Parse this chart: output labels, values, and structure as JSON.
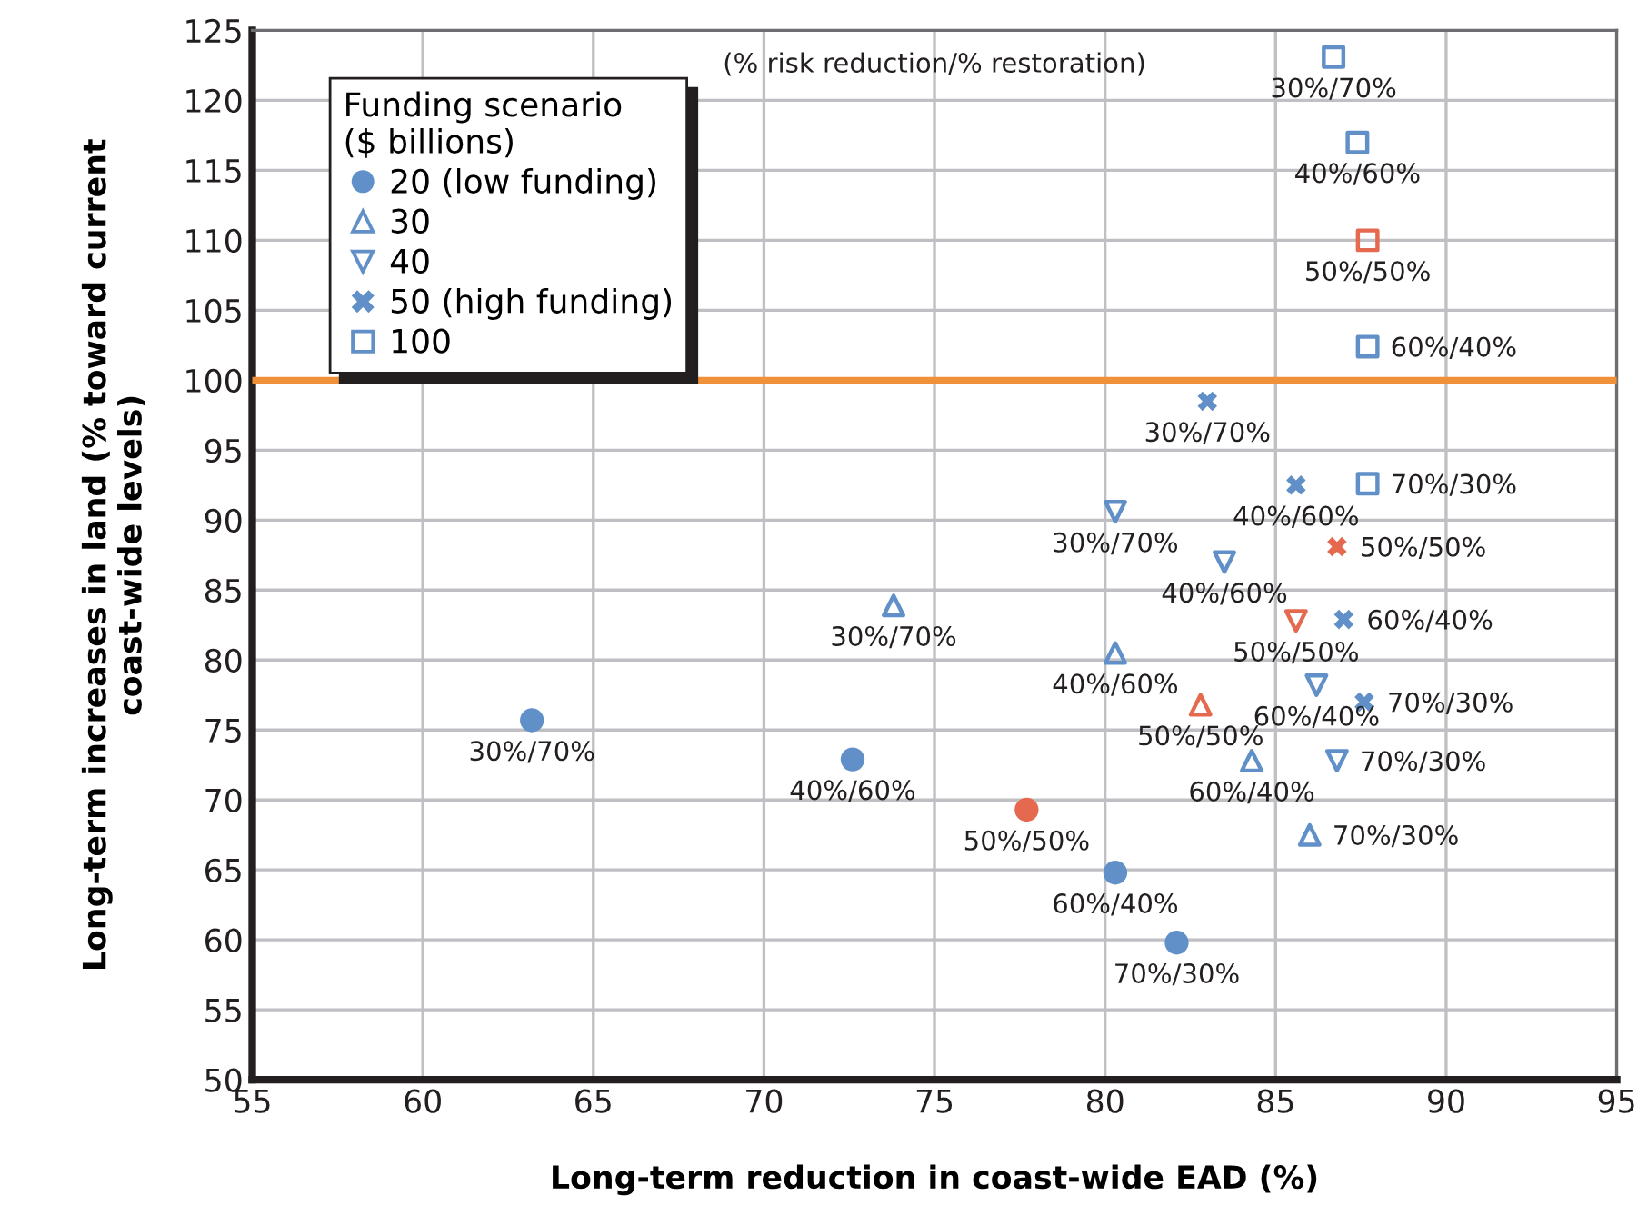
{
  "chart_data": {
    "type": "scatter",
    "xlabel": "Long-term reduction in coast-wide EAD (%)",
    "ylabel": "Long-term increases in land (% toward current\ncoast-wide levels)",
    "legend_title": "Funding scenario\n($ billions)",
    "legend": "top left",
    "grid": true,
    "xlim": [
      55,
      95
    ],
    "xticks": [
      55,
      60,
      65,
      70,
      75,
      80,
      85,
      90,
      95
    ],
    "ylim": [
      50,
      125
    ],
    "yticks": [
      50,
      55,
      60,
      65,
      70,
      75,
      80,
      85,
      90,
      95,
      100,
      105,
      110,
      115,
      120,
      125
    ],
    "annotations": [
      "(% risk reduction/% restoration)"
    ],
    "ref_lines": [
      {
        "axis": "y",
        "value": 100,
        "color": "#f0913a"
      }
    ],
    "series": [
      {
        "name": "20 (low funding)",
        "marker": "circle",
        "color": "#6190c8",
        "x": [
          63.2,
          72.6,
          77.7,
          80.3,
          82.1
        ],
        "values": [
          75.7,
          72.9,
          69.3,
          64.8,
          59.8
        ],
        "colors": [
          "#6190c8",
          "#6190c8",
          "#e5694f",
          "#6190c8",
          "#6190c8"
        ],
        "value_labels": [
          "30%/70%",
          "40%/60%",
          "50%/50%",
          "60%/40%",
          "70%/30%"
        ]
      },
      {
        "name": "30",
        "marker": "triangle",
        "color": "#6190c8",
        "x": [
          73.8,
          80.3,
          82.8,
          84.3,
          86.0
        ],
        "values": [
          83.9,
          80.5,
          76.8,
          72.8,
          67.5
        ],
        "colors": [
          "#6190c8",
          "#6190c8",
          "#e5694f",
          "#6190c8",
          "#6190c8"
        ],
        "value_labels": [
          "30%/70%",
          "40%/60%",
          "50%/50%",
          "60%/40%",
          "70%/30%"
        ]
      },
      {
        "name": "40",
        "marker": "triangle_down",
        "color": "#6190c8",
        "x": [
          80.3,
          83.5,
          85.6,
          86.2,
          86.8
        ],
        "values": [
          90.6,
          87.0,
          82.8,
          78.2,
          72.8
        ],
        "colors": [
          "#6190c8",
          "#6190c8",
          "#e5694f",
          "#6190c8",
          "#6190c8"
        ],
        "value_labels": [
          "30%/70%",
          "40%/60%",
          "50%/50%",
          "60%/40%",
          "70%/30%"
        ]
      },
      {
        "name": "50 (high funding)",
        "marker": "cross",
        "color": "#6190c8",
        "x": [
          83.0,
          85.6,
          86.8,
          87.0,
          87.6
        ],
        "values": [
          98.5,
          92.5,
          88.1,
          82.9,
          77.0
        ],
        "colors": [
          "#6190c8",
          "#6190c8",
          "#e5694f",
          "#6190c8",
          "#6190c8"
        ],
        "value_labels": [
          "30%/70%",
          "40%/60%",
          "50%/50%",
          "60%/40%",
          "70%/30%"
        ]
      },
      {
        "name": "100",
        "marker": "square",
        "color": "#6190c8",
        "x": [
          86.7,
          87.4,
          87.7,
          87.7,
          87.7
        ],
        "values": [
          123.1,
          117.0,
          110.0,
          102.4,
          92.6
        ],
        "colors": [
          "#6190c8",
          "#6190c8",
          "#e5694f",
          "#6190c8",
          "#6190c8"
        ],
        "value_labels": [
          "30%/70%",
          "40%/60%",
          "50%/50%",
          "60%/40%",
          "70%/30%"
        ]
      }
    ]
  }
}
